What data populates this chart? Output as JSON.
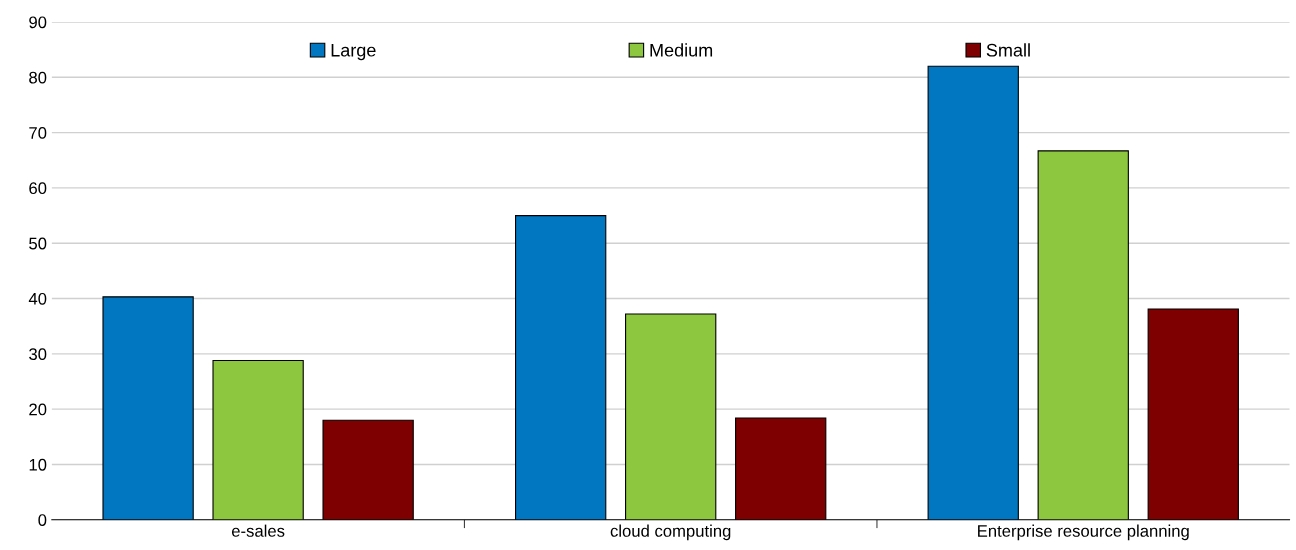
{
  "chart_data": {
    "type": "bar",
    "categories": [
      "e-sales",
      "cloud computing",
      "Enterprise resource planning"
    ],
    "series": [
      {
        "name": "Large",
        "color": "#0077c0",
        "values": [
          40.3,
          55.0,
          82.0
        ]
      },
      {
        "name": "Medium",
        "color": "#8dc63f",
        "values": [
          28.8,
          37.2,
          66.7
        ]
      },
      {
        "name": "Small",
        "color": "#7f0000",
        "values": [
          18.0,
          18.4,
          38.1
        ]
      }
    ],
    "ylim": [
      0,
      90
    ],
    "yticks": [
      0,
      10,
      20,
      30,
      40,
      50,
      60,
      70,
      80,
      90
    ],
    "grid": "y",
    "legend": "top"
  }
}
